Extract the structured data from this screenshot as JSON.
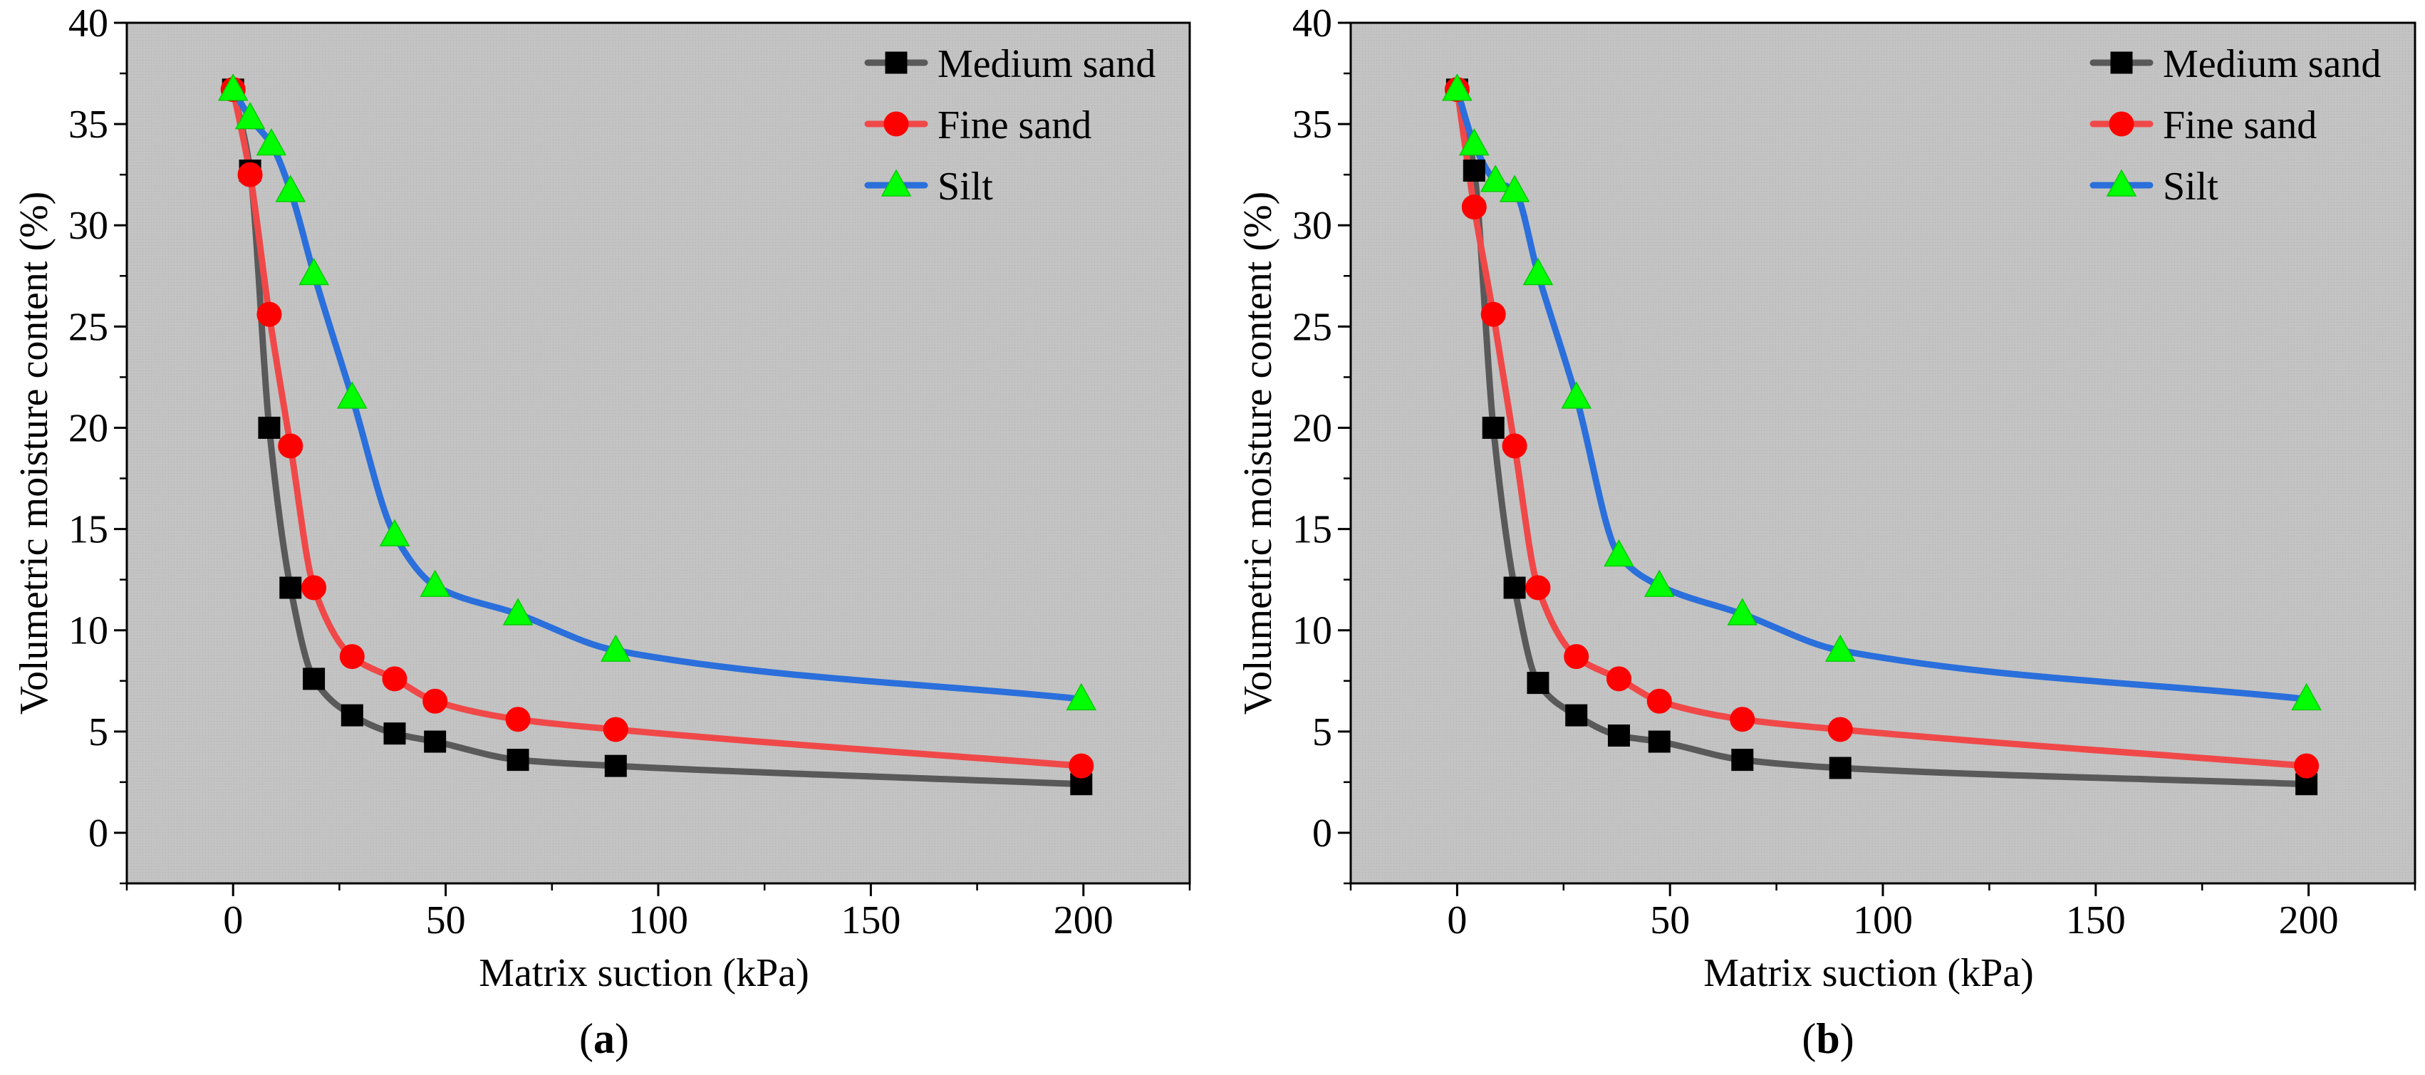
{
  "chart_data": [
    {
      "panel_label": "a",
      "type": "line",
      "xlabel": "Matrix suction (kPa)",
      "ylabel": "Volumetric moisture content (%)",
      "xlim": [
        -25,
        225
      ],
      "ylim": [
        -2.5,
        40
      ],
      "xticks": [
        0,
        50,
        100,
        150,
        200
      ],
      "yticks": [
        0,
        5,
        10,
        15,
        20,
        25,
        30,
        35,
        40
      ],
      "legend_position": "top-right",
      "series": [
        {
          "name": "Medium sand",
          "marker": "square",
          "marker_color": "#000000",
          "line_color": "#595959",
          "x": [
            0,
            4,
            8.5,
            13.5,
            19,
            28,
            38,
            47.5,
            67,
            90,
            199.5
          ],
          "y": [
            36.7,
            32.7,
            20.0,
            12.1,
            7.6,
            5.8,
            4.9,
            4.5,
            3.6,
            3.3,
            2.4
          ]
        },
        {
          "name": "Fine sand",
          "marker": "circle",
          "marker_color": "#ff0000",
          "line_color": "#f04848",
          "x": [
            0,
            4,
            8.5,
            13.5,
            19,
            28,
            38,
            47.5,
            67,
            90,
            199.5
          ],
          "y": [
            36.7,
            32.5,
            25.6,
            19.1,
            12.1,
            8.7,
            7.6,
            6.5,
            5.6,
            5.1,
            3.3
          ]
        },
        {
          "name": "Silt",
          "marker": "triangle",
          "marker_color": "#00ff00",
          "line_color": "#2a6fdb",
          "x": [
            0,
            4,
            9,
            13.5,
            19,
            28,
            38,
            47.5,
            67,
            90,
            199.5
          ],
          "y": [
            36.7,
            35.3,
            34.0,
            31.7,
            27.6,
            21.5,
            14.7,
            12.2,
            10.8,
            9.0,
            6.6
          ]
        }
      ]
    },
    {
      "panel_label": "b",
      "type": "line",
      "xlabel": "Matrix suction (kPa)",
      "ylabel": "Volumetric moisture content (%)",
      "xlim": [
        -25,
        225
      ],
      "ylim": [
        -2.5,
        40
      ],
      "xticks": [
        0,
        50,
        100,
        150,
        200
      ],
      "yticks": [
        0,
        5,
        10,
        15,
        20,
        25,
        30,
        35,
        40
      ],
      "legend_position": "top-right",
      "series": [
        {
          "name": "Medium sand",
          "marker": "square",
          "marker_color": "#000000",
          "line_color": "#595959",
          "x": [
            0,
            4,
            8.5,
            13.5,
            19,
            28,
            38,
            47.5,
            67,
            90,
            199.5
          ],
          "y": [
            36.7,
            32.7,
            20.0,
            12.1,
            7.4,
            5.8,
            4.8,
            4.5,
            3.6,
            3.2,
            2.4
          ]
        },
        {
          "name": "Fine sand",
          "marker": "circle",
          "marker_color": "#ff0000",
          "line_color": "#f04848",
          "x": [
            0,
            4,
            8.5,
            13.5,
            19,
            28,
            38,
            47.5,
            67,
            90,
            199.5
          ],
          "y": [
            36.7,
            30.9,
            25.6,
            19.1,
            12.1,
            8.7,
            7.6,
            6.5,
            5.6,
            5.1,
            3.3
          ]
        },
        {
          "name": "Silt",
          "marker": "triangle",
          "marker_color": "#00ff00",
          "line_color": "#2a6fdb",
          "x": [
            0,
            4,
            9,
            13.5,
            19,
            28,
            38,
            47.5,
            67,
            90,
            199.5
          ],
          "y": [
            36.7,
            34.0,
            32.2,
            31.7,
            27.6,
            21.5,
            13.7,
            12.2,
            10.8,
            9.0,
            6.6
          ]
        }
      ]
    }
  ]
}
